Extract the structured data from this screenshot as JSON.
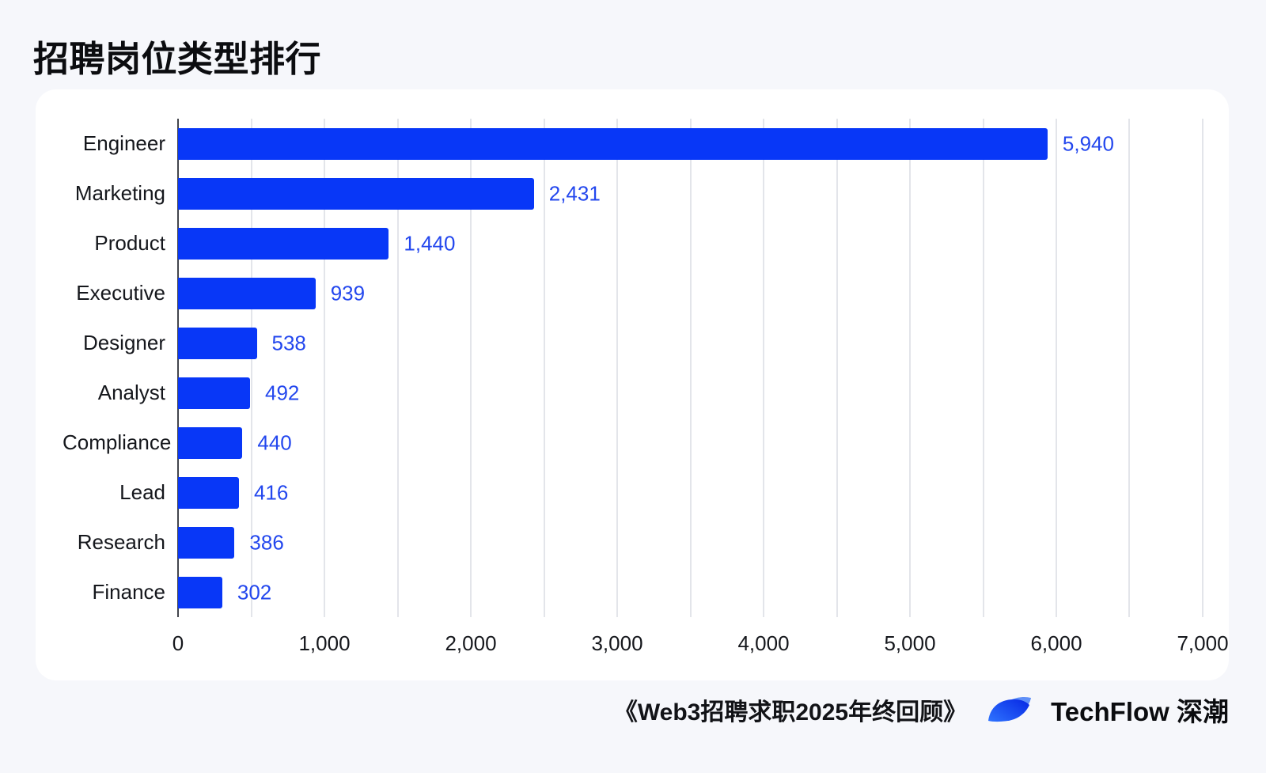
{
  "page": {
    "title": "招聘岗位类型排行",
    "background_color": "#f6f7fb",
    "card_color": "#ffffff"
  },
  "chart_data": {
    "type": "bar",
    "orientation": "horizontal",
    "title": "招聘岗位类型排行",
    "categories": [
      "Engineer",
      "Marketing",
      "Product",
      "Executive",
      "Designer",
      "Analyst",
      "Compliance",
      "Lead",
      "Research",
      "Finance"
    ],
    "values": [
      5940,
      2431,
      1440,
      939,
      538,
      492,
      440,
      416,
      386,
      302
    ],
    "value_labels": [
      "5,940",
      "2,431",
      "1,440",
      "939",
      "538",
      "492",
      "440",
      "416",
      "386",
      "302"
    ],
    "xlabel": "",
    "ylabel": "",
    "xlim": [
      0,
      7000
    ],
    "x_ticks": [
      0,
      1000,
      2000,
      3000,
      4000,
      5000,
      6000,
      7000
    ],
    "x_tick_labels": [
      "0",
      "1,000",
      "2,000",
      "3,000",
      "4,000",
      "5,000",
      "6,000",
      "7,000"
    ],
    "gridline_interval": 500,
    "grid": "vertical-only",
    "legend": "none",
    "bar_color": "#0837f7",
    "value_label_color": "#2347ee",
    "axis_line_color": "#43454c",
    "gridline_color": "#e3e5ea"
  },
  "footer": {
    "source_text": "《Web3招聘求职2025年终回顾》",
    "brand_text": "TechFlow 深潮",
    "logo_icon": "techflow-leaf-logo",
    "logo_colors": {
      "main_gradient_start": "#2f74ff",
      "main_gradient_end": "#0a2ee6",
      "accent": "#5f8ff7"
    }
  }
}
